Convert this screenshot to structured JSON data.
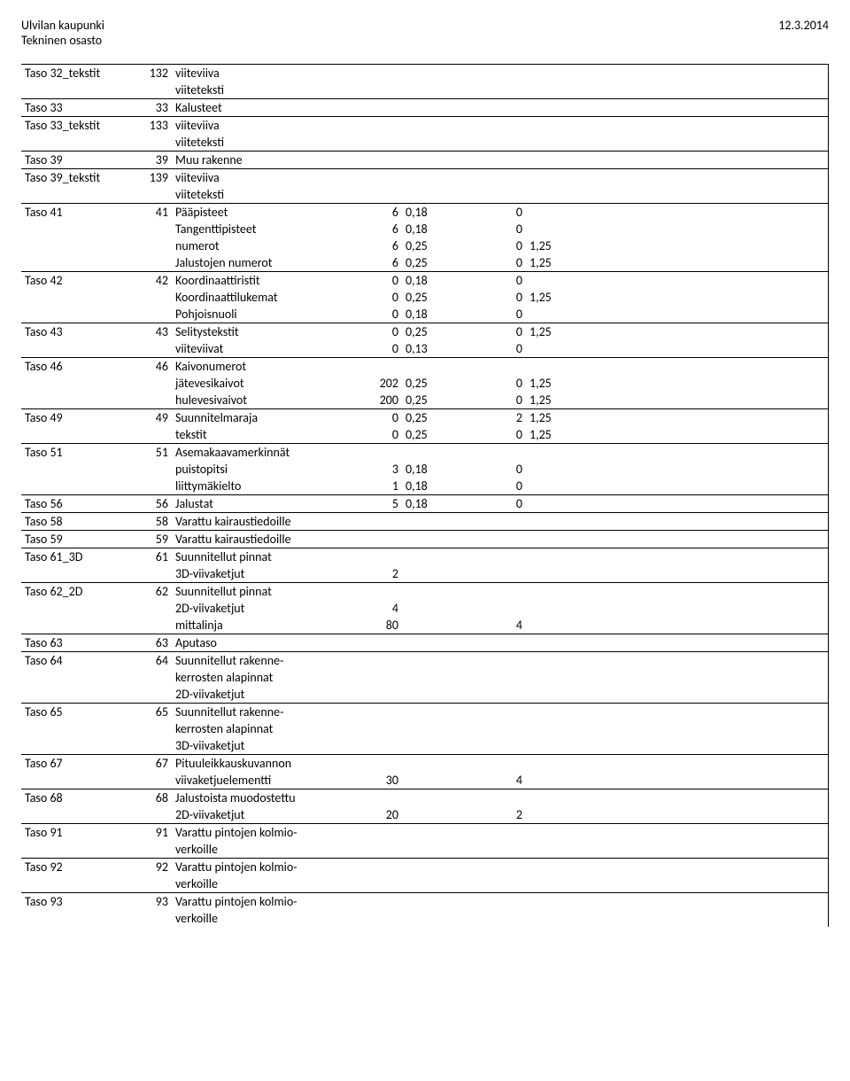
{
  "header": {
    "org": "Ulvilan kaupunki",
    "dept": "Tekninen osasto",
    "date": "12.3.2014"
  },
  "groups": [
    {
      "rows": [
        {
          "c1": "Taso 32_tekstit",
          "c2": "132",
          "c3": "viiteviiva"
        },
        {
          "c3": "viiteteksti"
        }
      ]
    },
    {
      "rows": [
        {
          "c1": "Taso 33",
          "c2": "33",
          "c3": "Kalusteet"
        }
      ]
    },
    {
      "rows": [
        {
          "c1": "Taso 33_tekstit",
          "c2": "133",
          "c3": "viiteviiva"
        },
        {
          "c3": "viiteteksti"
        }
      ]
    },
    {
      "rows": [
        {
          "c1": "Taso 39",
          "c2": "39",
          "c3": "Muu rakenne"
        }
      ]
    },
    {
      "rows": [
        {
          "c1": "Taso 39_tekstit",
          "c2": "139",
          "c3": "viiteviiva"
        },
        {
          "c3": "viiteteksti"
        }
      ]
    },
    {
      "rows": [
        {
          "c1": "Taso 41",
          "c2": "41",
          "c3": "Pääpisteet",
          "c4": "6",
          "c5": "0,18",
          "c6": "0"
        },
        {
          "c3": "Tangenttipisteet",
          "c4": "6",
          "c5": "0,18",
          "c6": "0"
        },
        {
          "c3": "numerot",
          "c4": "6",
          "c5": "0,25",
          "c6": "0",
          "c7": "1,25"
        },
        {
          "c3": "Jalustojen numerot",
          "c4": "6",
          "c5": "0,25",
          "c6": "0",
          "c7": "1,25"
        }
      ]
    },
    {
      "rows": [
        {
          "c1": "Taso 42",
          "c2": "42",
          "c3": "Koordinaattiristit",
          "c4": "0",
          "c5": "0,18",
          "c6": "0"
        },
        {
          "c3": "Koordinaattilukemat",
          "c4": "0",
          "c5": "0,25",
          "c6": "0",
          "c7": "1,25"
        },
        {
          "c3": "Pohjoisnuoli",
          "c4": "0",
          "c5": "0,18",
          "c6": "0"
        }
      ]
    },
    {
      "rows": [
        {
          "c1": "Taso 43",
          "c2": "43",
          "c3": "Selitystekstit",
          "c4": "0",
          "c5": "0,25",
          "c6": "0",
          "c7": "1,25"
        },
        {
          "c3": "viiteviivat",
          "c4": "0",
          "c5": "0,13",
          "c6": "0"
        }
      ]
    },
    {
      "rows": [
        {
          "c1": "Taso 46",
          "c2": "46",
          "c3": "Kaivonumerot"
        },
        {
          "c3": "jätevesikaivot",
          "c4": "202",
          "c5": "0,25",
          "c6": "0",
          "c7": "1,25"
        },
        {
          "c3": "hulevesivaivot",
          "c4": "200",
          "c5": "0,25",
          "c6": "0",
          "c7": "1,25"
        }
      ]
    },
    {
      "rows": [
        {
          "c1": "Taso 49",
          "c2": "49",
          "c3": "Suunnitelmaraja",
          "c4": "0",
          "c5": "0,25",
          "c6": "2",
          "c7": "1,25"
        },
        {
          "c3": "tekstit",
          "c4": "0",
          "c5": "0,25",
          "c6": "0",
          "c7": "1,25"
        }
      ]
    },
    {
      "rows": [
        {
          "c1": "Taso 51",
          "c2": "51",
          "c3": "Asemakaavamerkinnät"
        },
        {
          "c3": "puistopitsi",
          "c4": "3",
          "c5": "0,18",
          "c6": "0"
        },
        {
          "c3": "liittymäkielto",
          "c4": "1",
          "c5": "0,18",
          "c6": "0"
        }
      ]
    },
    {
      "rows": [
        {
          "c1": "Taso 56",
          "c2": "56",
          "c3": "Jalustat",
          "c4": "5",
          "c5": "0,18",
          "c6": "0"
        }
      ]
    },
    {
      "rows": [
        {
          "c1": "Taso 58",
          "c2": "58",
          "c3": "Varattu kairaustiedoille"
        }
      ]
    },
    {
      "rows": [
        {
          "c1": "Taso 59",
          "c2": "59",
          "c3": "Varattu kairaustiedoille"
        }
      ]
    },
    {
      "rows": [
        {
          "c1": "Taso 61_3D",
          "c2": "61",
          "c3": "Suunnitellut pinnat"
        },
        {
          "c3": "3D-viivaketjut",
          "c4": "2"
        }
      ]
    },
    {
      "rows": [
        {
          "c1": "Taso 62_2D",
          "c2": "62",
          "c3": "Suunnitellut pinnat"
        },
        {
          "c3": "2D-viivaketjut",
          "c4": "4"
        },
        {
          "c3": "mittalinja",
          "c4": "80",
          "c6": "4"
        }
      ]
    },
    {
      "rows": [
        {
          "c1": "Taso 63",
          "c2": "63",
          "c3": "Aputaso"
        }
      ]
    },
    {
      "rows": [
        {
          "c1": "Taso 64",
          "c2": "64",
          "c3": "Suunnitellut rakenne-"
        },
        {
          "c3": "kerrosten alapinnat"
        },
        {
          "c3": "2D-viivaketjut"
        }
      ]
    },
    {
      "rows": [
        {
          "c1": "Taso 65",
          "c2": "65",
          "c3": "Suunnitellut rakenne-"
        },
        {
          "c3": "kerrosten alapinnat"
        },
        {
          "c3": "3D-viivaketjut"
        }
      ]
    },
    {
      "rows": [
        {
          "c1": "Taso 67",
          "c2": "67",
          "c3": "Pituuleikkauskuvannon"
        },
        {
          "c3": "viivaketjuelementti",
          "c4": "30",
          "c6": "4"
        }
      ]
    },
    {
      "rows": [
        {
          "c1": "Taso 68",
          "c2": "68",
          "c3": "Jalustoista muodostettu"
        },
        {
          "c3": "2D-viivaketjut",
          "c4": "20",
          "c6": "2"
        }
      ]
    },
    {
      "rows": [
        {
          "c1": "Taso 91",
          "c2": "91",
          "c3": "Varattu pintojen kolmio-"
        },
        {
          "c3": "verkoille"
        }
      ]
    },
    {
      "rows": [
        {
          "c1": "Taso 92",
          "c2": "92",
          "c3": "Varattu pintojen kolmio-"
        },
        {
          "c3": "verkoille"
        }
      ]
    },
    {
      "rows": [
        {
          "c1": "Taso 93",
          "c2": "93",
          "c3": "Varattu pintojen kolmio-"
        },
        {
          "c3": "verkoille"
        }
      ]
    }
  ]
}
